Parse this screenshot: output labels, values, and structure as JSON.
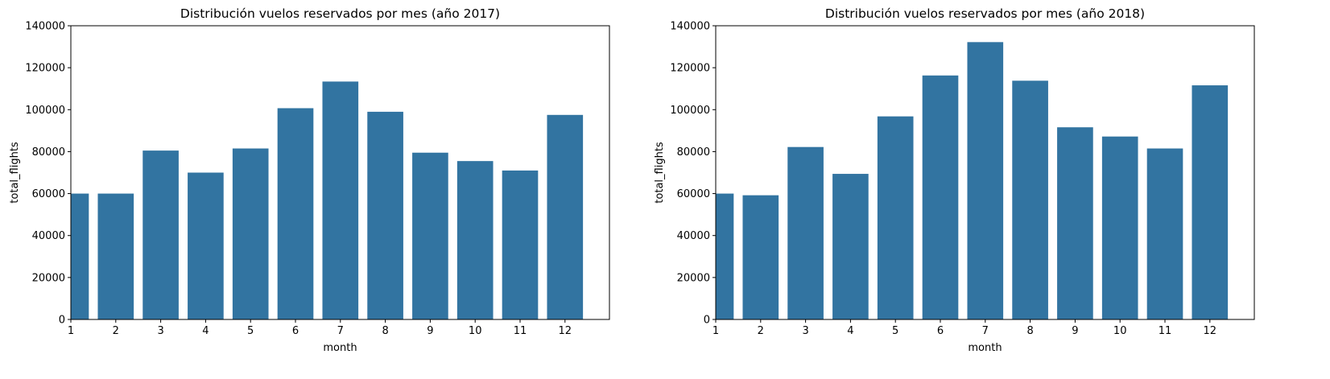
{
  "chart_data": [
    {
      "type": "bar",
      "title": "Distribución vuelos reservados por mes (año 2017)",
      "xlabel": "month",
      "ylabel": "total_flights",
      "categories": [
        "1",
        "2",
        "3",
        "4",
        "5",
        "6",
        "7",
        "8",
        "9",
        "10",
        "11",
        "12"
      ],
      "values": [
        60000,
        60000,
        80500,
        70000,
        81500,
        100700,
        113400,
        99000,
        79500,
        75500,
        71000,
        97500
      ],
      "ylim": [
        0,
        140000
      ],
      "yticks": [
        "0",
        "20000",
        "40000",
        "60000",
        "80000",
        "100000",
        "120000",
        "140000"
      ],
      "grid": false,
      "legend": "none",
      "bar_color": "#3274a1"
    },
    {
      "type": "bar",
      "title": "Distribución vuelos reservados por mes (año 2018)",
      "xlabel": "month",
      "ylabel": "total_flights",
      "categories": [
        "1",
        "2",
        "3",
        "4",
        "5",
        "6",
        "7",
        "8",
        "9",
        "10",
        "11",
        "12"
      ],
      "values": [
        60000,
        59200,
        82200,
        69400,
        96800,
        116300,
        132200,
        113800,
        91600,
        87200,
        81500,
        111600
      ],
      "ylim": [
        0,
        140000
      ],
      "yticks": [
        "0",
        "20000",
        "40000",
        "60000",
        "80000",
        "100000",
        "120000",
        "140000"
      ],
      "grid": false,
      "legend": "none",
      "bar_color": "#3274a1"
    }
  ]
}
